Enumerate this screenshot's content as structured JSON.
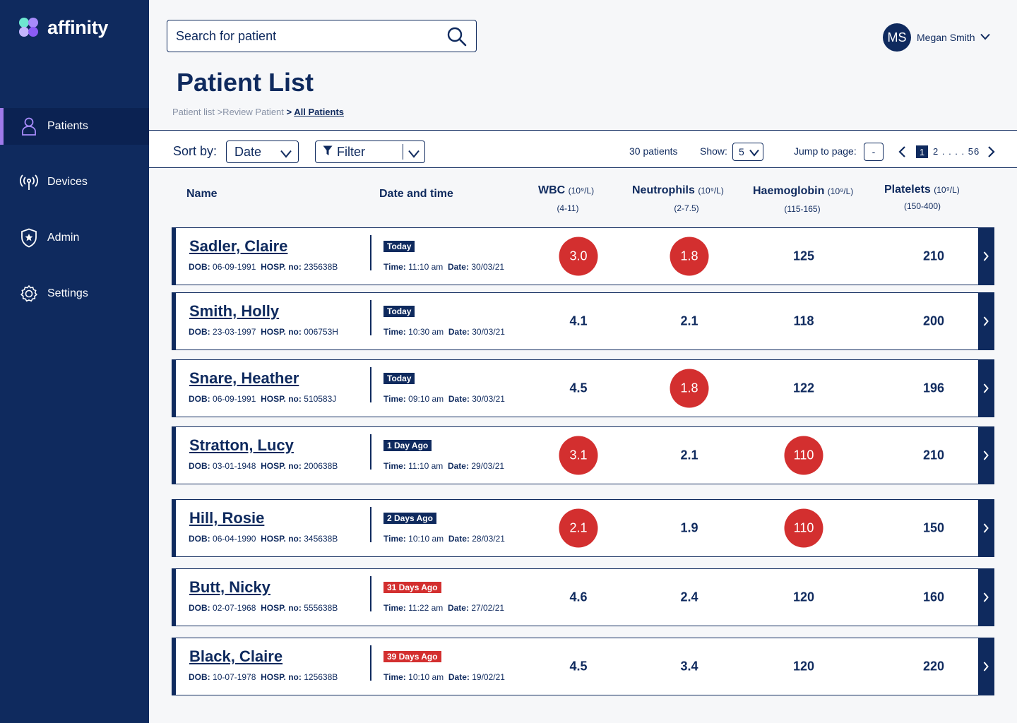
{
  "app": {
    "logo_text": "affinity"
  },
  "sidebar": {
    "items": [
      {
        "label": "Patients",
        "icon": "person-icon",
        "active": true
      },
      {
        "label": "Devices",
        "icon": "antenna-icon",
        "active": false
      },
      {
        "label": "Admin",
        "icon": "shield-star-icon",
        "active": false
      },
      {
        "label": "Settings",
        "icon": "gear-icon",
        "active": false
      }
    ]
  },
  "header": {
    "search_placeholder": "Search for patient",
    "user_initials": "MS",
    "user_name": "Megan Smith"
  },
  "page": {
    "title": "Patient List",
    "breadcrumb_part1": "Patient list >Review Patient",
    "breadcrumb_sep": " > ",
    "breadcrumb_current": "All Patients"
  },
  "toolbar": {
    "sort_label": "Sort by:",
    "sort_value": "Date",
    "filter_label": "Filter",
    "patient_count": "30 patients",
    "show_label": "Show:",
    "show_value": "5",
    "jump_label": "Jump to page:",
    "jump_value": "-",
    "page_current": "1",
    "page_range": "2 . . . . 5",
    "page_last": "6"
  },
  "columns": {
    "name": "Name",
    "datetime": "Date and time",
    "wbc": "WBC",
    "neutrophils": "Neutrophils",
    "haemoglobin": "Haemoglobin",
    "platelets": "Platelets",
    "unit": "(10⁹/L)",
    "wbc_range": "(4-11)",
    "neutrophils_range": "(2-7.5)",
    "haemoglobin_range": "(115-165)",
    "platelets_range": "(150-400)"
  },
  "labels": {
    "dob": "DOB:",
    "hosp": "HOSP. no:",
    "time": "Time:",
    "date": "Date:"
  },
  "colors": {
    "navy": "#0f2a5e",
    "alert_red": "#d32f2f",
    "accent_purple": "#9f7aea"
  },
  "patients": [
    {
      "name": "Sadler, Claire",
      "dob": "06-09-1991",
      "hosp": "235638B",
      "badge": "Today",
      "badge_type": "recent",
      "time": "11:10 am",
      "date": "30/03/21",
      "wbc": "3.0",
      "wbc_flag": true,
      "neut": "1.8",
      "neut_flag": true,
      "hb": "125",
      "hb_flag": false,
      "plt": "210",
      "plt_flag": false
    },
    {
      "name": "Smith, Holly",
      "dob": "23-03-1997",
      "hosp": "006753H",
      "badge": "Today",
      "badge_type": "recent",
      "time": "10:30 am",
      "date": "30/03/21",
      "wbc": "4.1",
      "wbc_flag": false,
      "neut": "2.1",
      "neut_flag": false,
      "hb": "118",
      "hb_flag": false,
      "plt": "200",
      "plt_flag": false
    },
    {
      "name": "Snare, Heather",
      "dob": "06-09-1991",
      "hosp": "510583J",
      "badge": "Today",
      "badge_type": "recent",
      "time": "09:10 am",
      "date": "30/03/21",
      "wbc": "4.5",
      "wbc_flag": false,
      "neut": "1.8",
      "neut_flag": true,
      "hb": "122",
      "hb_flag": false,
      "plt": "196",
      "plt_flag": false
    },
    {
      "name": "Stratton, Lucy",
      "dob": "03-01-1948",
      "hosp": "200638B",
      "badge": "1 Day Ago",
      "badge_type": "recent",
      "time": "11:10 am",
      "date": "29/03/21",
      "wbc": "3.1",
      "wbc_flag": true,
      "neut": "2.1",
      "neut_flag": false,
      "hb": "110",
      "hb_flag": true,
      "plt": "210",
      "plt_flag": false
    },
    {
      "name": "Hill, Rosie",
      "dob": "06-04-1990",
      "hosp": "345638B",
      "badge": "2 Days Ago",
      "badge_type": "recent",
      "time": "10:10 am",
      "date": "28/03/21",
      "wbc": "2.1",
      "wbc_flag": true,
      "neut": "1.9",
      "neut_flag": false,
      "hb": "110",
      "hb_flag": true,
      "plt": "150",
      "plt_flag": false
    },
    {
      "name": "Butt, Nicky",
      "dob": "02-07-1968",
      "hosp": "555638B",
      "badge": "31 Days Ago",
      "badge_type": "old",
      "time": "11:22 am",
      "date": "27/02/21",
      "wbc": "4.6",
      "wbc_flag": false,
      "neut": "2.4",
      "neut_flag": false,
      "hb": "120",
      "hb_flag": false,
      "plt": "160",
      "plt_flag": false
    },
    {
      "name": "Black, Claire",
      "dob": "10-07-1978",
      "hosp": "125638B",
      "badge": "39 Days Ago",
      "badge_type": "old",
      "time": "10:10 am",
      "date": "19/02/21",
      "wbc": "4.5",
      "wbc_flag": false,
      "neut": "3.4",
      "neut_flag": false,
      "hb": "120",
      "hb_flag": false,
      "plt": "220",
      "plt_flag": false
    }
  ]
}
